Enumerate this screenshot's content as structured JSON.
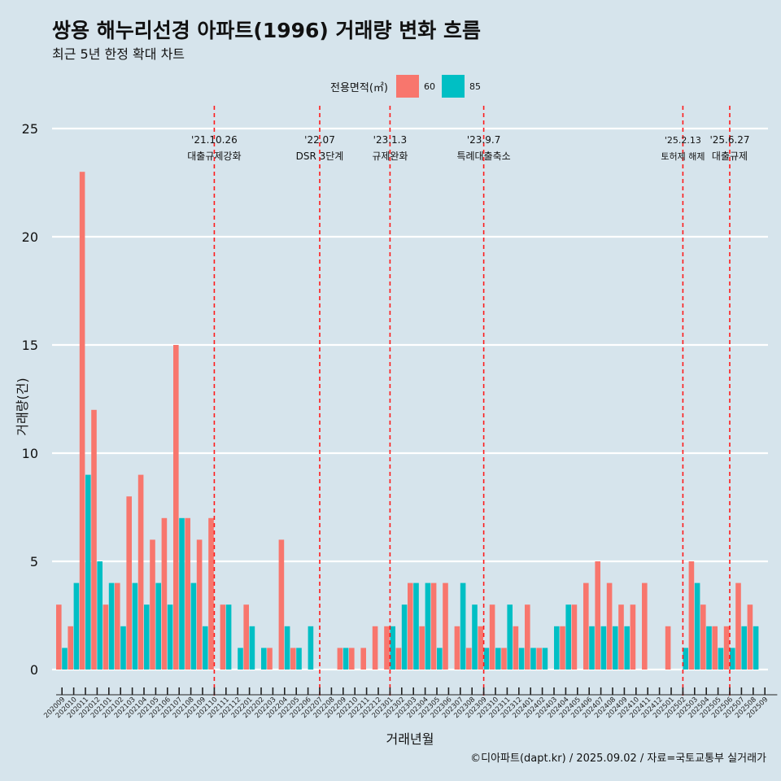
{
  "title": "쌍용 해누리선경 아파트(1996) 거래량 변화 흐름",
  "subtitle": "최근 5년 한정 확대 차트",
  "caption": "©디아파트(dapt.kr) / 2025.09.02 / 자료=국토교통부 실거래가",
  "legend": {
    "title": "전용면적(㎡)",
    "items": [
      {
        "label": "60",
        "color": "#F8766D"
      },
      {
        "label": "85",
        "color": "#00BFC4"
      }
    ]
  },
  "chart_data": {
    "type": "bar",
    "xlabel": "거래년월",
    "ylabel": "거래량(건)",
    "ylim": [
      0,
      25
    ],
    "yticks": [
      0,
      5,
      10,
      15,
      20,
      25
    ],
    "grid": true,
    "legend_position": "top",
    "categories": [
      "202009",
      "202010",
      "202011",
      "202012",
      "202101",
      "202102",
      "202103",
      "202104",
      "202105",
      "202106",
      "202107",
      "202108",
      "202109",
      "202110",
      "202111",
      "202112",
      "202201",
      "202202",
      "202203",
      "202204",
      "202205",
      "202206",
      "202207",
      "202208",
      "202209",
      "202210",
      "202211",
      "202212",
      "202301",
      "202302",
      "202303",
      "202304",
      "202305",
      "202306",
      "202307",
      "202308",
      "202309",
      "202310",
      "202311",
      "202312",
      "202401",
      "202402",
      "202403",
      "202404",
      "202405",
      "202406",
      "202407",
      "202408",
      "202409",
      "202410",
      "202411",
      "202412",
      "202501",
      "202502",
      "202503",
      "202504",
      "202505",
      "202506",
      "202507",
      "202508",
      "202509"
    ],
    "series": [
      {
        "name": "60",
        "color": "#F8766D",
        "values": [
          3,
          2,
          23,
          12,
          3,
          4,
          8,
          9,
          6,
          7,
          15,
          7,
          6,
          7,
          3,
          0,
          3,
          0,
          1,
          6,
          1,
          0,
          0,
          0,
          1,
          1,
          1,
          2,
          2,
          1,
          4,
          2,
          4,
          4,
          2,
          1,
          2,
          3,
          1,
          2,
          3,
          1,
          0,
          2,
          3,
          4,
          5,
          4,
          3,
          3,
          4,
          0,
          2,
          0,
          5,
          3,
          2,
          2,
          4,
          3,
          0
        ]
      },
      {
        "name": "85",
        "color": "#00BFC4",
        "values": [
          1,
          4,
          9,
          5,
          4,
          2,
          4,
          3,
          4,
          3,
          7,
          4,
          2,
          0,
          3,
          1,
          2,
          1,
          0,
          2,
          1,
          2,
          0,
          0,
          1,
          0,
          0,
          0,
          2,
          3,
          4,
          4,
          1,
          0,
          4,
          3,
          1,
          1,
          3,
          1,
          1,
          1,
          2,
          3,
          0,
          2,
          2,
          2,
          2,
          0,
          0,
          0,
          0,
          1,
          4,
          2,
          1,
          1,
          2,
          2,
          0
        ]
      }
    ],
    "annotations": [
      {
        "at": "202110",
        "date": "'21.10.26",
        "label": "대출규제강화"
      },
      {
        "at": "202207",
        "date": "'22.07",
        "label": "DSR 3단계"
      },
      {
        "at": "202301",
        "date": "'23.1.3",
        "label": "규제완화"
      },
      {
        "at": "202309",
        "date": "'23.9.7",
        "label": "특례대출축소"
      },
      {
        "at": "202502",
        "date": "'25.2.13",
        "label": "토허제 해제"
      },
      {
        "at": "202506",
        "date": "'25.6.27",
        "label": "대출규제"
      }
    ]
  }
}
